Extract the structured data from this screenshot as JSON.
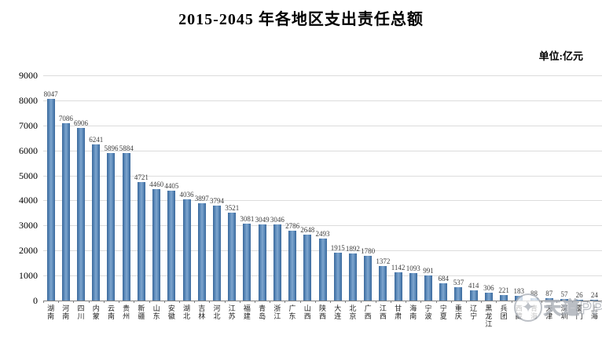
{
  "title": "2015-2045 年各地区支出责任总额",
  "unit_label": "单位:亿元",
  "watermark": {
    "logo_glyph": "✦",
    "text": "天道PPP"
  },
  "chart_data": {
    "type": "bar",
    "title": "2015-2045 年各地区支出责任总额",
    "unit": "亿元",
    "xlabel": "",
    "ylabel": "",
    "ylim": [
      0,
      9000
    ],
    "ytick_step": 1000,
    "yticks": [
      0,
      1000,
      2000,
      3000,
      4000,
      5000,
      6000,
      7000,
      8000,
      9000
    ],
    "grid": true,
    "legend": "none",
    "bar_color": "#4f81bd",
    "gridline_color": "#dcdcdc",
    "categories": [
      "湖南",
      "河南",
      "四川",
      "内蒙",
      "云南",
      "贵州",
      "新疆",
      "山东",
      "安徽",
      "湖北",
      "吉林",
      "河北",
      "江苏",
      "福建",
      "青岛",
      "浙江",
      "广东",
      "山西",
      "陕西",
      "大连",
      "北京",
      "广西",
      "江西",
      "甘肃",
      "海南",
      "宁波",
      "宁夏",
      "重庆",
      "辽宁",
      "黑龙江",
      "兵团",
      "西藏",
      "青海",
      "天津",
      "深圳",
      "厦门",
      "上海"
    ],
    "values": [
      8047,
      7086,
      6906,
      6241,
      5896,
      5884,
      4721,
      4460,
      4405,
      4036,
      3897,
      3794,
      3521,
      3081,
      3049,
      3046,
      2786,
      2648,
      2493,
      1915,
      1892,
      1780,
      1372,
      1142,
      1093,
      991,
      684,
      537,
      414,
      306,
      221,
      183,
      88,
      87,
      57,
      26,
      24
    ]
  }
}
